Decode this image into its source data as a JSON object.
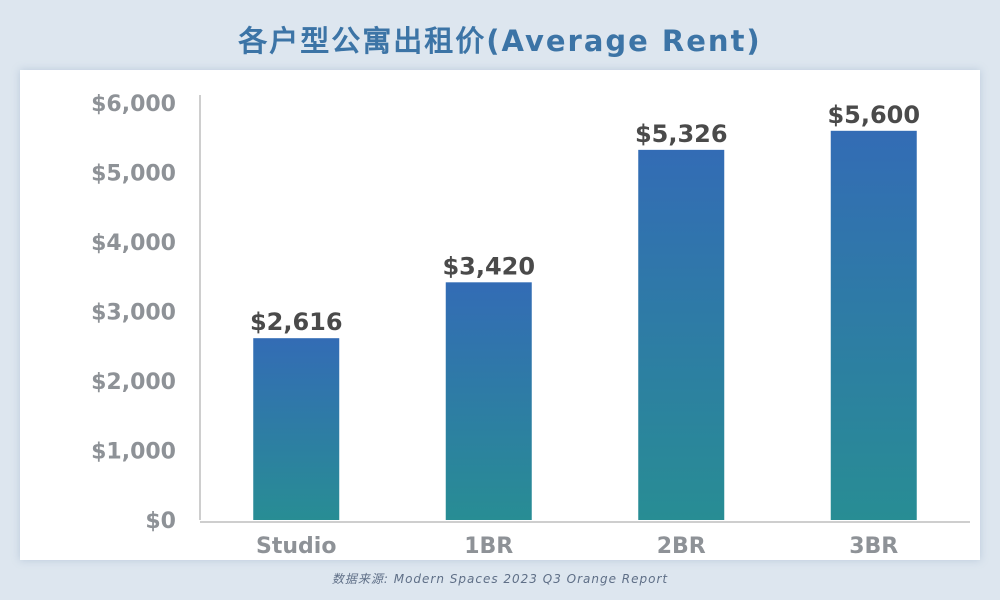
{
  "title": "各户型公寓出租价(Average Rent)",
  "source": "数据来源: Modern Spaces 2023 Q3 Orange Report",
  "colors": {
    "background": "#dde6ef",
    "title": "#3c74a6",
    "bar_top": "#336cb5",
    "bar_bottom": "#288d94",
    "tick_label": "#8e9297",
    "data_label": "#4a4a4a",
    "category_label": "#8e9297"
  },
  "chart_data": {
    "type": "bar",
    "title": "各户型公寓出租价(Average Rent)",
    "categories": [
      "Studio",
      "1BR",
      "2BR",
      "3BR"
    ],
    "values": [
      2616,
      3420,
      5326,
      5600
    ],
    "data_labels": [
      "$2,616",
      "$3,420",
      "$5,326",
      "$5,600"
    ],
    "y_ticks": [
      0,
      1000,
      2000,
      3000,
      4000,
      5000,
      6000
    ],
    "y_tick_labels": [
      "$0",
      "$1,000",
      "$2,000",
      "$3,000",
      "$4,000",
      "$5,000",
      "$6,000"
    ],
    "ylim": [
      0,
      6000
    ],
    "xlabel": "",
    "ylabel": "",
    "grid": false,
    "legend": "none"
  }
}
